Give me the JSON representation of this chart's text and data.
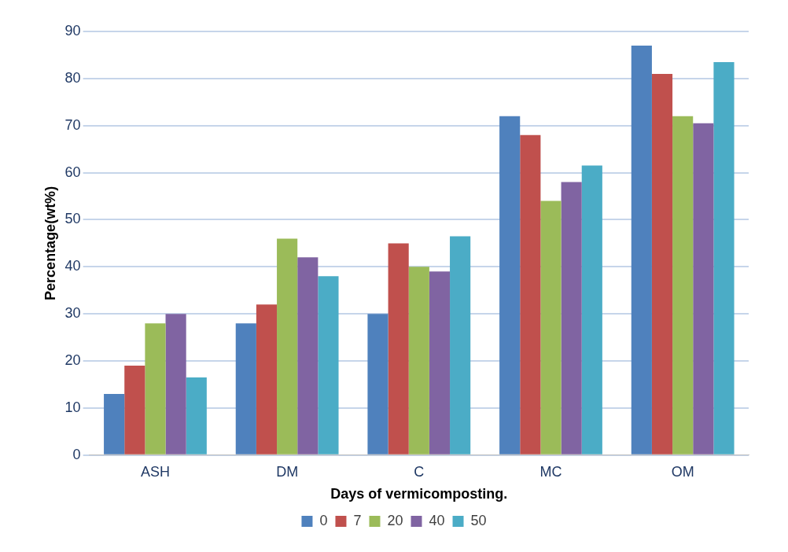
{
  "chart_data": {
    "type": "bar",
    "xlabel": "Days of vermicomposting.",
    "ylabel": "Percentage(wt%)",
    "categories": [
      "ASH",
      "DM",
      "C",
      "MC",
      "OM"
    ],
    "series": [
      {
        "name": "0",
        "color": "#4f81bd",
        "values": [
          13,
          28,
          30,
          72,
          87
        ]
      },
      {
        "name": "7",
        "color": "#c0504d",
        "values": [
          19,
          32,
          45,
          68,
          81
        ]
      },
      {
        "name": "20",
        "color": "#9bbb59",
        "values": [
          28,
          46,
          40,
          54,
          72
        ]
      },
      {
        "name": "40",
        "color": "#8064a2",
        "values": [
          30,
          42,
          39,
          58,
          70.5
        ]
      },
      {
        "name": "50",
        "color": "#4bacc6",
        "values": [
          16.5,
          38,
          46.5,
          61.5,
          83.5
        ]
      }
    ],
    "ylim": [
      0,
      90
    ],
    "yticks": [
      0,
      10,
      20,
      30,
      40,
      50,
      60,
      70,
      80,
      90
    ],
    "grid": "y",
    "legend": "bottom"
  }
}
